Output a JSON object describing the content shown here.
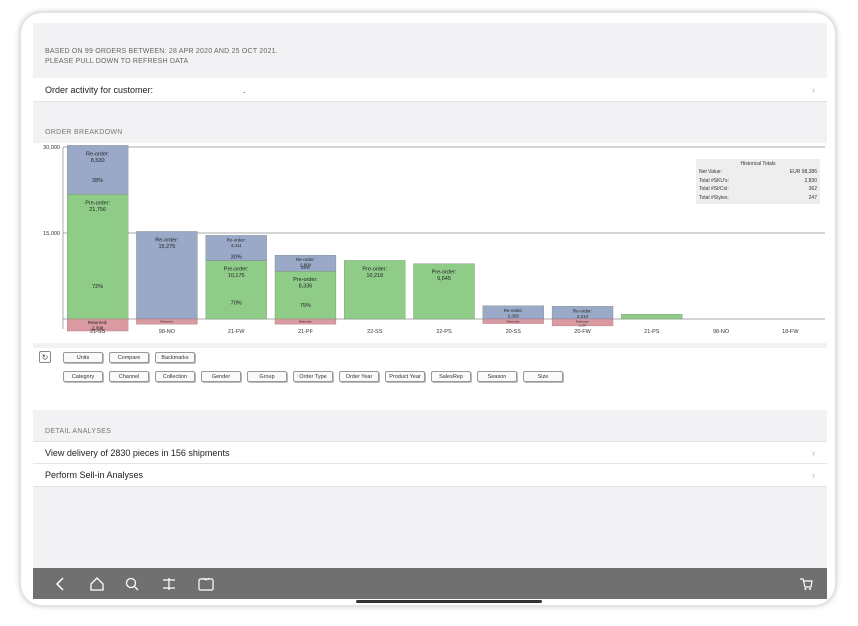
{
  "header": {
    "info_line1": "BASED ON 99 ORDERS BETWEEN: 28 APR 2020 AND 25 OCT 2021.",
    "info_line2": "PLEASE PULL DOWN TO REFRESH DATA",
    "customer_label": "Order activity for customer:",
    "customer_value": "."
  },
  "breakdown": {
    "section_label": "ORDER BREAKDOWN"
  },
  "totals": {
    "title": "Historical Totals",
    "rows": [
      {
        "label": "Net Value:",
        "value": "EUR 98,386"
      },
      {
        "label": "Total #SKU's:",
        "value": "2,830"
      },
      {
        "label": "Total #St/Col:",
        "value": "362"
      },
      {
        "label": "Total #Styles:",
        "value": "247"
      }
    ]
  },
  "chart_data": {
    "type": "bar",
    "stacked": true,
    "ylim": [
      -1500,
      30000
    ],
    "yticks": [
      "30,000",
      "15,000"
    ],
    "grid": true,
    "categories": [
      "21-SS",
      "98-NO",
      "21-FW",
      "21-PF",
      "22-SS",
      "22-PS",
      "20-SS",
      "20-FW",
      "21-PS",
      "98-NO",
      "18-FW"
    ],
    "series": [
      {
        "name": "Pre-order",
        "color": "#8fcc88",
        "values": [
          21756,
          0,
          10175,
          8336,
          10218,
          9645,
          0,
          0,
          850,
          0,
          0
        ]
      },
      {
        "name": "Re-order",
        "color": "#9aa9c8",
        "values": [
          8530,
          15275,
          4411,
          2800,
          0,
          0,
          2305,
          2213,
          0,
          0,
          0
        ]
      },
      {
        "name": "Returned",
        "color": "#d99aa2",
        "values": [
          -2098,
          -900,
          0,
          -900,
          0,
          0,
          -800,
          -1207,
          0,
          0,
          0
        ]
      }
    ],
    "bar_labels": [
      {
        "bar": 0,
        "series": "Re-order",
        "text": "Re-order:\n8,530",
        "pct": "28%"
      },
      {
        "bar": 0,
        "series": "Pre-order",
        "text": "Pre-order:\n21,756",
        "pct": "72%"
      },
      {
        "bar": 0,
        "series": "Returned",
        "text": "Returned:\n2,098",
        "pct": ""
      },
      {
        "bar": 1,
        "series": "Re-order",
        "text": "Re-order:\n15,275",
        "pct": ""
      },
      {
        "bar": 1,
        "series": "Returned",
        "text": "Returned:\n",
        "pct": ""
      },
      {
        "bar": 2,
        "series": "Re-order",
        "text": "Re-order:\n4,411",
        "pct": "30%"
      },
      {
        "bar": 2,
        "series": "Pre-order",
        "text": "Pre-order:\n10,175",
        "pct": "70%"
      },
      {
        "bar": 3,
        "series": "Re-order",
        "text": "Re-order:\n2,800",
        "pct": "25%"
      },
      {
        "bar": 3,
        "series": "Pre-order",
        "text": "Pre-order:\n8,336",
        "pct": "75%"
      },
      {
        "bar": 3,
        "series": "Returned",
        "text": "Returned:\n",
        "pct": ""
      },
      {
        "bar": 4,
        "series": "Pre-order",
        "text": "Pre-order:\n10,218",
        "pct": ""
      },
      {
        "bar": 5,
        "series": "Pre-order",
        "text": "Pre-order:\n9,645",
        "pct": ""
      },
      {
        "bar": 6,
        "series": "Re-order",
        "text": "Re-order:\n2,305",
        "pct": ""
      },
      {
        "bar": 6,
        "series": "Returned",
        "text": "Returned:\n",
        "pct": ""
      },
      {
        "bar": 7,
        "series": "Re-order",
        "text": "Re-order:\n2,213",
        "pct": ""
      },
      {
        "bar": 7,
        "series": "Returned",
        "text": "Returned:\n1,207",
        "pct": ""
      }
    ]
  },
  "controls": {
    "mode_buttons": [
      "Units",
      "Compare",
      "Backmarks"
    ],
    "filter_buttons": [
      "Category",
      "Channel",
      "Collection",
      "Gender",
      "Group",
      "Order Type",
      "Order Year",
      "Product Year",
      "SalesRep",
      "Season",
      "Size"
    ]
  },
  "detail": {
    "section_label": "DETAIL ANALYSES",
    "items": [
      {
        "label": "View delivery of 2830 pieces in 156 shipments"
      },
      {
        "label": "Perform Sell-in Analyses"
      }
    ]
  },
  "icons": {
    "chevron": "›",
    "refresh": "↻"
  },
  "bottom_nav": [
    "back-icon",
    "home-icon",
    "search-icon",
    "adjust-icon",
    "tv-icon",
    "cart-icon"
  ]
}
